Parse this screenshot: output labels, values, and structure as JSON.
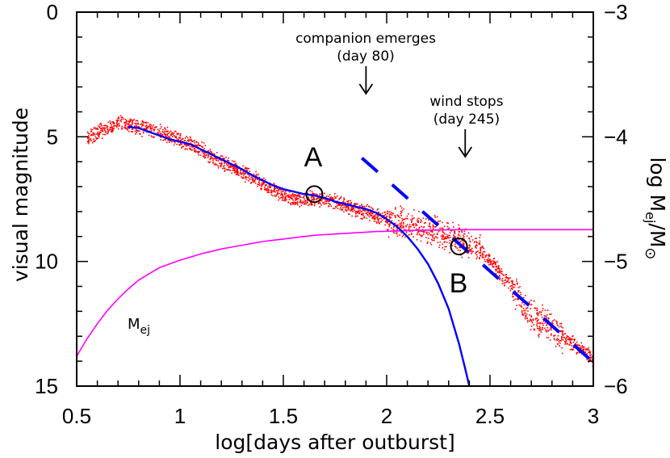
{
  "chart_data": {
    "type": "scatter",
    "xlabel": "log[days after outburst]",
    "ylabel": "visual magnitude",
    "y2label": "log M",
    "y2label_sub": "ej",
    "y2label_unit": "/M",
    "y2label_unit_sub": "⊙",
    "xlim": [
      0.5,
      3.0
    ],
    "ylim": [
      15,
      0
    ],
    "y2lim": [
      -6,
      -3
    ],
    "x_ticks": [
      "0.5",
      "1",
      "1.5",
      "2",
      "2.5",
      "3"
    ],
    "y_ticks": [
      "0",
      "5",
      "10",
      "15"
    ],
    "y2_ticks": [
      "-3",
      "-4",
      "-5",
      "-6"
    ],
    "annotations": {
      "companion_line1": "companion emerges",
      "companion_line2": "(day 80)",
      "wind_line1": "wind stops",
      "wind_line2": "(day 245)",
      "point_a": "A",
      "point_b": "B",
      "mej_label": "M",
      "mej_label_sub": "ej"
    },
    "marked_points": [
      {
        "name": "A",
        "x": 1.65,
        "y": 7.3
      },
      {
        "name": "B",
        "x": 2.35,
        "y": 9.4
      }
    ],
    "arrows": [
      {
        "name": "companion",
        "x": 1.9
      },
      {
        "name": "wind",
        "x": 2.38
      }
    ],
    "series": [
      {
        "kind": "observations",
        "color": "#ff0000",
        "x": [
          0.55,
          0.6,
          0.65,
          0.7,
          0.75,
          0.8,
          0.85,
          0.9,
          0.95,
          1.0,
          1.05,
          1.1,
          1.15,
          1.2,
          1.25,
          1.3,
          1.35,
          1.4,
          1.45,
          1.5,
          1.55,
          1.6,
          1.65,
          1.7,
          1.75,
          1.8,
          1.85,
          1.9,
          1.95,
          2.0,
          2.05,
          2.1,
          2.15,
          2.2,
          2.25,
          2.3,
          2.35,
          2.4,
          2.45,
          2.5,
          2.55,
          2.6,
          2.65,
          2.7,
          2.75,
          2.8,
          2.85,
          2.9,
          2.95,
          3.0
        ],
        "y": [
          5.0,
          4.8,
          4.6,
          4.4,
          4.5,
          4.6,
          4.7,
          4.8,
          4.95,
          5.1,
          5.3,
          5.5,
          5.75,
          6.0,
          6.2,
          6.4,
          6.6,
          6.9,
          7.1,
          7.35,
          7.5,
          7.5,
          7.45,
          7.5,
          7.6,
          7.75,
          7.9,
          8.0,
          8.15,
          8.3,
          8.4,
          8.5,
          8.6,
          8.7,
          8.8,
          8.95,
          9.1,
          9.35,
          9.6,
          9.9,
          10.5,
          11.0,
          11.6,
          12.1,
          12.4,
          12.7,
          13.0,
          13.3,
          13.6,
          13.9
        ]
      },
      {
        "kind": "model-magnitude",
        "color": "#0000ff",
        "x": [
          0.75,
          0.8,
          0.85,
          0.9,
          0.95,
          1.0,
          1.05,
          1.1,
          1.15,
          1.2,
          1.25,
          1.3,
          1.35,
          1.4,
          1.45,
          1.5,
          1.55,
          1.6,
          1.65,
          1.7,
          1.75,
          1.8,
          1.85,
          1.9,
          1.95,
          2.0,
          2.05,
          2.1,
          2.15,
          2.2,
          2.25,
          2.3,
          2.35,
          2.38,
          2.4
        ],
        "y": [
          4.6,
          4.65,
          4.8,
          4.95,
          5.1,
          5.2,
          5.3,
          5.5,
          5.7,
          5.9,
          6.1,
          6.3,
          6.55,
          6.75,
          6.95,
          7.1,
          7.2,
          7.3,
          7.35,
          7.45,
          7.6,
          7.7,
          7.8,
          7.9,
          8.05,
          8.3,
          8.6,
          9.0,
          9.5,
          10.1,
          10.9,
          11.9,
          13.3,
          14.3,
          15.0
        ]
      },
      {
        "kind": "companion-decline",
        "color": "#0000ff",
        "dashed": true,
        "x": [
          1.88,
          2.98
        ],
        "y": [
          5.85,
          13.9
        ]
      },
      {
        "kind": "ejecta-mass",
        "color": "#ff00ff",
        "axis": "right",
        "x": [
          0.5,
          0.55,
          0.6,
          0.65,
          0.7,
          0.75,
          0.8,
          0.85,
          0.9,
          0.95,
          1.0,
          1.05,
          1.1,
          1.15,
          1.2,
          1.25,
          1.3,
          1.35,
          1.4,
          1.45,
          1.5,
          1.55,
          1.6,
          1.65,
          1.7,
          1.75,
          1.8,
          1.85,
          1.9,
          1.95,
          2.0,
          2.05,
          2.1,
          2.15,
          2.2,
          2.25,
          2.3,
          2.35,
          2.38,
          2.4,
          2.5,
          2.6,
          2.7,
          2.8,
          2.9,
          3.0
        ],
        "y": [
          -5.76,
          -5.62,
          -5.5,
          -5.39,
          -5.3,
          -5.22,
          -5.15,
          -5.1,
          -5.05,
          -5.02,
          -4.99,
          -4.965,
          -4.94,
          -4.92,
          -4.9,
          -4.885,
          -4.87,
          -4.855,
          -4.84,
          -4.83,
          -4.82,
          -4.81,
          -4.8,
          -4.79,
          -4.785,
          -4.78,
          -4.775,
          -4.77,
          -4.765,
          -4.76,
          -4.758,
          -4.755,
          -4.752,
          -4.75,
          -4.748,
          -4.747,
          -4.746,
          -4.745,
          -4.745,
          -4.745,
          -4.745,
          -4.745,
          -4.745,
          -4.745,
          -4.745,
          -4.745
        ]
      }
    ]
  }
}
